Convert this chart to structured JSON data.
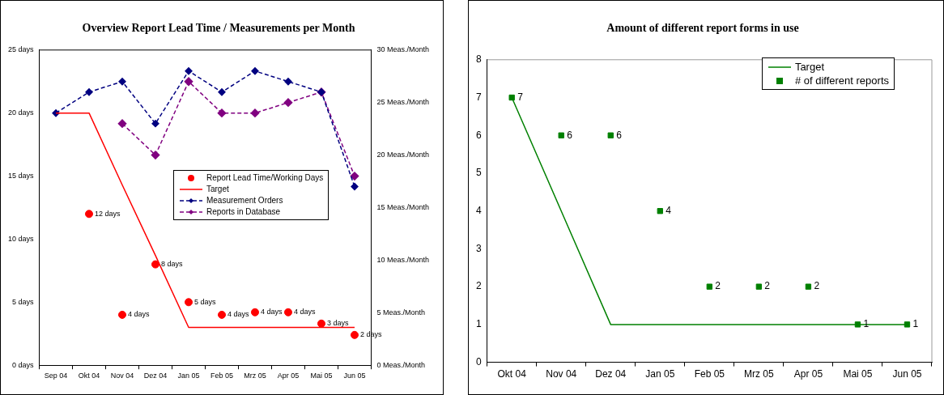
{
  "chart_data": [
    {
      "type": "line",
      "title": "Overview Report Lead Time / Measurements per Month",
      "categories": [
        "Sep 04",
        "Okt 04",
        "Nov 04",
        "Dez 04",
        "Jan 05",
        "Feb 05",
        "Mrz 05",
        "Apr 05",
        "Mai 05",
        "Jun 05"
      ],
      "series": [
        {
          "name": "Report Lead Time/Working Days",
          "type": "scatter",
          "marker": "circle",
          "color": "#ff0000",
          "values": [
            null,
            12,
            4,
            8,
            5,
            4,
            4.2,
            4.2,
            3.3,
            2.4
          ],
          "value_labels": [
            null,
            "12 days",
            "4 days",
            "8 days",
            "5 days",
            "4 days",
            "4 days",
            "4 days",
            "3 days",
            "2 days"
          ]
        },
        {
          "name": "Target",
          "marker": "none",
          "line_style": "solid",
          "color": "#ff0000",
          "values": [
            20,
            20,
            14.3,
            8.7,
            3,
            3,
            3,
            3,
            3,
            3
          ]
        },
        {
          "name": "Measurement Orders",
          "axis": "y2",
          "marker": "diamond",
          "line_style": "dashed",
          "color": "#000080",
          "values": [
            24,
            26,
            27,
            23,
            28,
            26,
            28,
            27,
            26,
            17
          ]
        },
        {
          "name": "Reports in Database",
          "axis": "y2",
          "marker": "diamond",
          "line_style": "dashed",
          "color": "#800080",
          "values": [
            null,
            null,
            23,
            20,
            27,
            24,
            24,
            25,
            26,
            18
          ]
        }
      ],
      "ylim": [
        0,
        25
      ],
      "yticks": [
        {
          "value": 0,
          "label": "0 days"
        },
        {
          "value": 5,
          "label": "5 days"
        },
        {
          "value": 10,
          "label": "10 days"
        },
        {
          "value": 15,
          "label": "15 days"
        },
        {
          "value": 20,
          "label": "20 days"
        },
        {
          "value": 25,
          "label": "25 days"
        }
      ],
      "y2lim": [
        0,
        30
      ],
      "y2ticks": [
        {
          "value": 0,
          "label": "0 Meas./Month"
        },
        {
          "value": 5,
          "label": "5 Meas./Month"
        },
        {
          "value": 10,
          "label": "10 Meas./Month"
        },
        {
          "value": 15,
          "label": "15 Meas./Month"
        },
        {
          "value": 20,
          "label": "20 Meas./Month"
        },
        {
          "value": 25,
          "label": "25 Meas./Month"
        },
        {
          "value": 30,
          "label": "30 Meas./Month"
        }
      ],
      "grid": false,
      "legend": "right"
    },
    {
      "type": "line",
      "title": "Amount of different report forms in use",
      "categories": [
        "Okt 04",
        "Nov 04",
        "Dez 04",
        "Jan 05",
        "Feb 05",
        "Mrz 05",
        "Apr 05",
        "Mai 05",
        "Jun 05"
      ],
      "series": [
        {
          "name": "Target",
          "marker": "none",
          "line_style": "solid",
          "color": "#008000",
          "values": [
            7,
            4,
            1,
            1,
            1,
            1,
            1,
            1,
            1
          ]
        },
        {
          "name": "# of different reports",
          "type": "scatter",
          "marker": "square",
          "color": "#008000",
          "values": [
            7,
            6,
            6,
            4,
            2,
            2,
            2,
            1,
            1
          ],
          "value_labels": [
            "7",
            "6",
            "6",
            "4",
            "2",
            "2",
            "2",
            "1",
            "1"
          ]
        }
      ],
      "ylim": [
        0,
        8
      ],
      "yticks": [
        0,
        1,
        2,
        3,
        4,
        5,
        6,
        7,
        8
      ],
      "grid": false,
      "legend": "top right"
    }
  ]
}
